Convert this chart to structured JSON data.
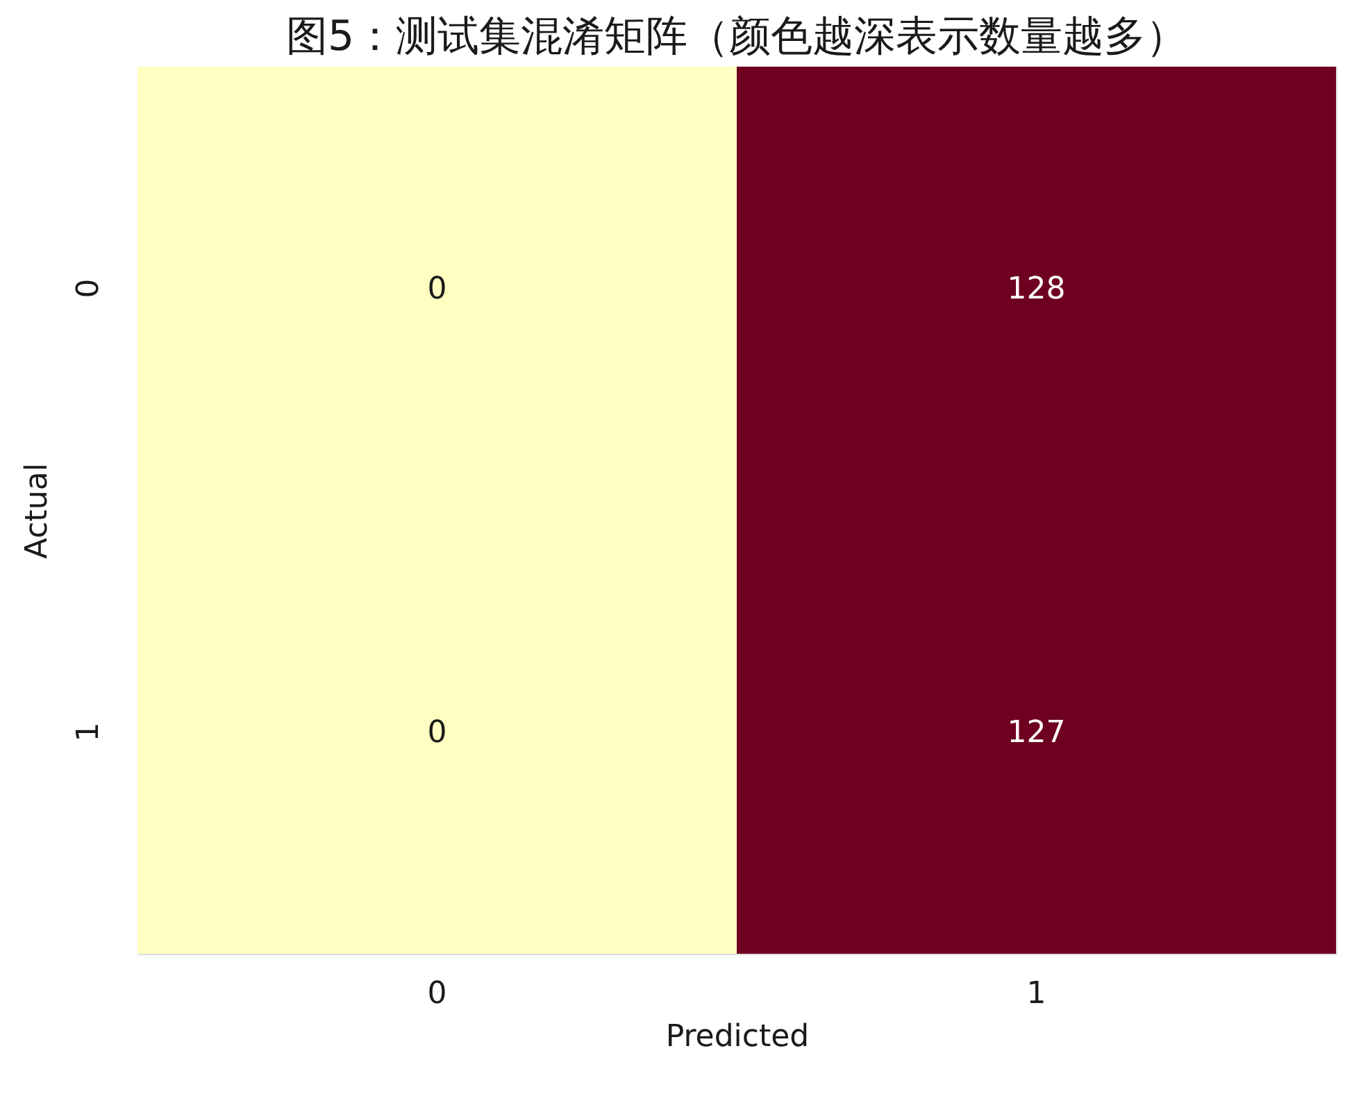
{
  "chart_data": {
    "type": "heatmap",
    "title": "图5：测试集混淆矩阵（颜色越深表示数量越多）",
    "xlabel": "Predicted",
    "ylabel": "Actual",
    "categories": [
      "0",
      "1"
    ],
    "y_categories": [
      "0",
      "1"
    ],
    "cells": [
      [
        0,
        128
      ],
      [
        0,
        127
      ]
    ],
    "colors": [
      "#ffffc2",
      "#6e0020",
      "#ffffc2",
      "#6e0020"
    ],
    "data_labels": true
  }
}
